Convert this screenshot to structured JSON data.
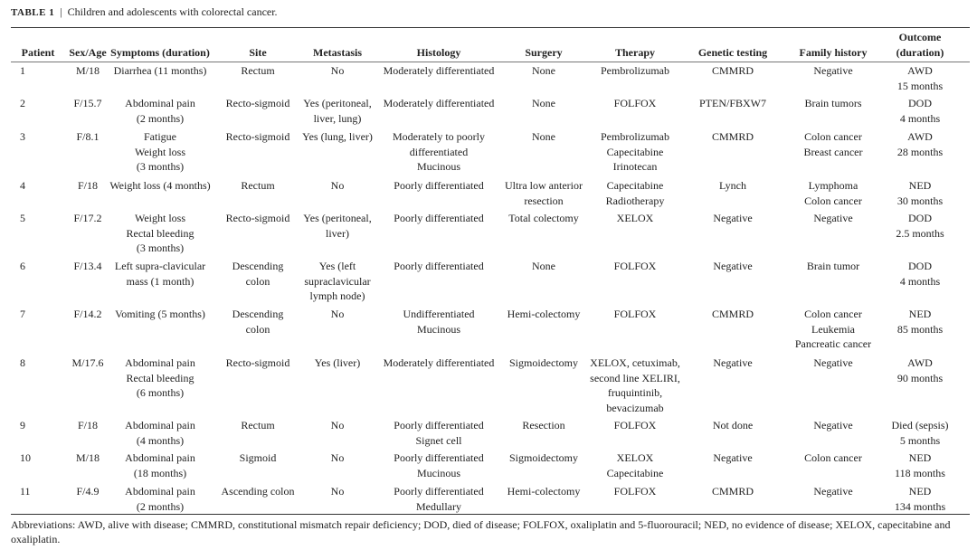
{
  "caption": {
    "label": "TABLE 1",
    "separator": "|",
    "text": "Children and adolescents with colorectal cancer."
  },
  "table": {
    "headers": [
      [
        "Patient"
      ],
      [
        "Sex/Age"
      ],
      [
        "Symptoms (duration)"
      ],
      [
        "Site"
      ],
      [
        "Metastasis"
      ],
      [
        "Histology"
      ],
      [
        "Surgery"
      ],
      [
        "Therapy"
      ],
      [
        "Genetic testing"
      ],
      [
        "Family history"
      ],
      [
        "Outcome",
        "(duration)"
      ]
    ],
    "rows": [
      [
        [
          "1"
        ],
        [
          "M/18"
        ],
        [
          "Diarrhea (11 months)"
        ],
        [
          "Rectum"
        ],
        [
          "No"
        ],
        [
          "Moderately differentiated"
        ],
        [
          "None"
        ],
        [
          "Pembrolizumab"
        ],
        [
          "CMMRD"
        ],
        [
          "Negative"
        ],
        [
          "AWD",
          "15 months"
        ]
      ],
      [
        [
          "2"
        ],
        [
          "F/15.7"
        ],
        [
          "Abdominal pain",
          "(2 months)"
        ],
        [
          "Recto-sigmoid"
        ],
        [
          "Yes (peritoneal,",
          "liver, lung)"
        ],
        [
          "Moderately differentiated"
        ],
        [
          "None"
        ],
        [
          "FOLFOX"
        ],
        [
          "PTEN/FBXW7"
        ],
        [
          "Brain tumors"
        ],
        [
          "DOD",
          "4 months"
        ]
      ],
      [
        [
          "3"
        ],
        [
          "F/8.1"
        ],
        [
          "Fatigue",
          "Weight loss",
          "(3 months)"
        ],
        [
          "Recto-sigmoid"
        ],
        [
          "Yes (lung, liver)"
        ],
        [
          "Moderately to poorly",
          "differentiated",
          "Mucinous"
        ],
        [
          "None"
        ],
        [
          "Pembrolizumab",
          "Capecitabine",
          "Irinotecan"
        ],
        [
          "CMMRD"
        ],
        [
          "Colon cancer",
          "Breast cancer"
        ],
        [
          "AWD",
          "28 months"
        ]
      ],
      [
        [
          "4"
        ],
        [
          "F/18"
        ],
        [
          "Weight loss (4 months)"
        ],
        [
          "Rectum"
        ],
        [
          "No"
        ],
        [
          "Poorly differentiated"
        ],
        [
          "Ultra low anterior",
          "resection"
        ],
        [
          "Capecitabine",
          "Radiotherapy"
        ],
        [
          "Lynch"
        ],
        [
          "Lymphoma",
          "Colon cancer"
        ],
        [
          "NED",
          "30 months"
        ]
      ],
      [
        [
          "5"
        ],
        [
          "F/17.2"
        ],
        [
          "Weight loss",
          "Rectal bleeding",
          "(3 months)"
        ],
        [
          "Recto-sigmoid"
        ],
        [
          "Yes (peritoneal,",
          "liver)"
        ],
        [
          "Poorly differentiated"
        ],
        [
          "Total colectomy"
        ],
        [
          "XELOX"
        ],
        [
          "Negative"
        ],
        [
          "Negative"
        ],
        [
          "DOD",
          "2.5 months"
        ]
      ],
      [
        [
          "6"
        ],
        [
          "F/13.4"
        ],
        [
          "Left supra-clavicular",
          "mass (1 month)"
        ],
        [
          "Descending",
          "colon"
        ],
        [
          "Yes (left",
          "supraclavicular",
          "lymph node)"
        ],
        [
          "Poorly differentiated"
        ],
        [
          "None"
        ],
        [
          "FOLFOX"
        ],
        [
          "Negative"
        ],
        [
          "Brain tumor"
        ],
        [
          "DOD",
          "4 months"
        ]
      ],
      [
        [
          "7"
        ],
        [
          "F/14.2"
        ],
        [
          "Vomiting (5 months)"
        ],
        [
          "Descending",
          "colon"
        ],
        [
          "No"
        ],
        [
          "Undifferentiated",
          "Mucinous"
        ],
        [
          "Hemi-colectomy"
        ],
        [
          "FOLFOX"
        ],
        [
          "CMMRD"
        ],
        [
          "Colon cancer",
          "Leukemia",
          "Pancreatic cancer"
        ],
        [
          "NED",
          "85 months"
        ]
      ],
      [
        [
          "8"
        ],
        [
          "M/17.6"
        ],
        [
          "Abdominal pain",
          "Rectal bleeding",
          "(6 months)"
        ],
        [
          "Recto-sigmoid"
        ],
        [
          "Yes (liver)"
        ],
        [
          "Moderately differentiated"
        ],
        [
          "Sigmoidectomy"
        ],
        [
          "XELOX, cetuximab,",
          "second line XELIRI,",
          "fruquintinib,",
          "bevacizumab"
        ],
        [
          "Negative"
        ],
        [
          "Negative"
        ],
        [
          "AWD",
          "90 months"
        ]
      ],
      [
        [
          "9"
        ],
        [
          "F/18"
        ],
        [
          "Abdominal pain",
          "(4 months)"
        ],
        [
          "Rectum"
        ],
        [
          "No"
        ],
        [
          "Poorly differentiated",
          "Signet cell"
        ],
        [
          "Resection"
        ],
        [
          "FOLFOX"
        ],
        [
          "Not done"
        ],
        [
          "Negative"
        ],
        [
          "Died (sepsis)",
          "5 months"
        ]
      ],
      [
        [
          "10"
        ],
        [
          "M/18"
        ],
        [
          "Abdominal pain",
          "(18 months)"
        ],
        [
          "Sigmoid"
        ],
        [
          "No"
        ],
        [
          "Poorly differentiated",
          "Mucinous"
        ],
        [
          "Sigmoidectomy"
        ],
        [
          "XELOX",
          "Capecitabine"
        ],
        [
          "Negative"
        ],
        [
          "Colon cancer"
        ],
        [
          "NED",
          "118 months"
        ]
      ],
      [
        [
          "11"
        ],
        [
          "F/4.9"
        ],
        [
          "Abdominal pain",
          "(2 months)"
        ],
        [
          "Ascending colon"
        ],
        [
          "No"
        ],
        [
          "Poorly differentiated",
          "Medullary"
        ],
        [
          "Hemi-colectomy"
        ],
        [
          "FOLFOX"
        ],
        [
          "CMMRD"
        ],
        [
          "Negative"
        ],
        [
          "NED",
          "134 months"
        ]
      ]
    ]
  },
  "footnote": "Abbreviations: AWD, alive with disease; CMMRD, constitutional mismatch repair deficiency; DOD, died of disease; FOLFOX, oxaliplatin and 5-fluorouracil; NED, no evidence of disease; XELOX, capecitabine and oxaliplatin."
}
